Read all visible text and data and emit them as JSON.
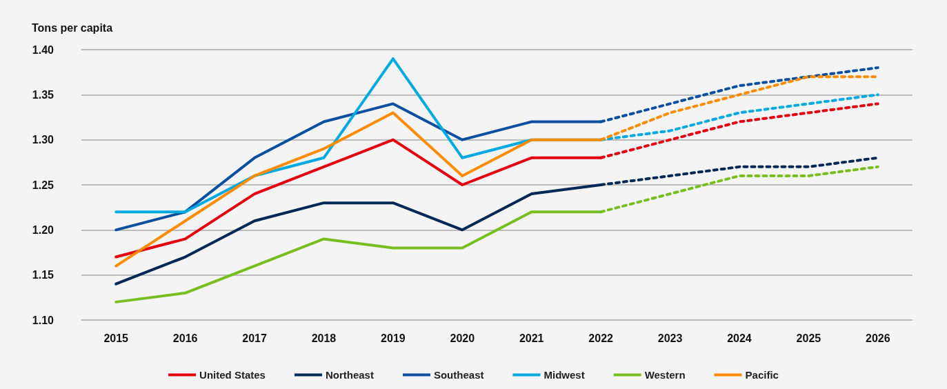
{
  "chart_data": {
    "type": "line",
    "ylabel": "Tons per capita",
    "categories": [
      "2015",
      "2016",
      "2017",
      "2018",
      "2019",
      "2020",
      "2021",
      "2022",
      "2023",
      "2024",
      "2025",
      "2026"
    ],
    "ylim": [
      1.1,
      1.4
    ],
    "yticks": [
      {
        "value": 1.1,
        "label": "1.10"
      },
      1.15,
      {
        "value": 1.2,
        "label": "1.20"
      },
      1.25,
      {
        "value": 1.3,
        "label": "1.30"
      },
      1.35,
      {
        "value": 1.4,
        "label": "1.40"
      }
    ],
    "grid": "y",
    "legend": "bottom",
    "marker": "none",
    "series": [
      {
        "name": "United States",
        "color": "#e3000f",
        "line_style": "solid",
        "values": [
          1.17,
          1.19,
          1.24,
          1.27,
          1.3,
          1.25,
          1.28,
          1.28,
          null,
          null,
          null,
          null
        ]
      },
      {
        "name": "Northeast",
        "color": "#002855",
        "line_style": "solid",
        "values": [
          1.14,
          1.17,
          1.21,
          1.23,
          1.23,
          1.2,
          1.24,
          1.25,
          null,
          null,
          null,
          null
        ]
      },
      {
        "name": "Southeast",
        "color": "#0a4fa0",
        "line_style": "solid",
        "values": [
          1.2,
          1.22,
          1.28,
          1.32,
          1.34,
          1.3,
          1.32,
          1.32,
          null,
          null,
          null,
          null
        ]
      },
      {
        "name": "Midwest",
        "color": "#00a9e0",
        "line_style": "solid",
        "values": [
          1.22,
          1.22,
          1.26,
          1.28,
          1.39,
          1.28,
          1.3,
          1.3,
          null,
          null,
          null,
          null
        ]
      },
      {
        "name": "Western",
        "color": "#78be20",
        "line_style": "solid",
        "values": [
          1.12,
          1.13,
          1.16,
          1.19,
          1.18,
          1.18,
          1.22,
          1.22,
          null,
          null,
          null,
          null
        ]
      },
      {
        "name": "Pacific",
        "color": "#ff8c00",
        "line_style": "solid",
        "values": [
          1.16,
          1.21,
          1.26,
          1.29,
          1.33,
          1.26,
          1.3,
          1.3,
          null,
          null,
          null,
          null
        ]
      },
      {
        "color": "#e3000f",
        "line_style": "dashed",
        "values": [
          null,
          null,
          null,
          null,
          null,
          null,
          null,
          1.28,
          1.3,
          1.32,
          1.33,
          1.34
        ]
      },
      {
        "color": "#002855",
        "line_style": "dashed",
        "values": [
          null,
          null,
          null,
          null,
          null,
          null,
          null,
          1.25,
          1.26,
          1.27,
          1.27,
          1.28
        ]
      },
      {
        "color": "#0a4fa0",
        "line_style": "dashed",
        "values": [
          null,
          null,
          null,
          null,
          null,
          null,
          null,
          1.32,
          1.34,
          1.36,
          1.37,
          1.38
        ]
      },
      {
        "color": "#00a9e0",
        "line_style": "dashed",
        "values": [
          null,
          null,
          null,
          null,
          null,
          null,
          null,
          1.3,
          1.31,
          1.33,
          1.34,
          1.35
        ]
      },
      {
        "color": "#78be20",
        "line_style": "dashed",
        "values": [
          null,
          null,
          null,
          null,
          null,
          null,
          null,
          1.22,
          1.24,
          1.26,
          1.26,
          1.27
        ]
      },
      {
        "color": "#ff8c00",
        "line_style": "dashed",
        "values": [
          null,
          null,
          null,
          null,
          null,
          null,
          null,
          1.3,
          1.33,
          1.35,
          1.37,
          1.37
        ]
      }
    ]
  }
}
